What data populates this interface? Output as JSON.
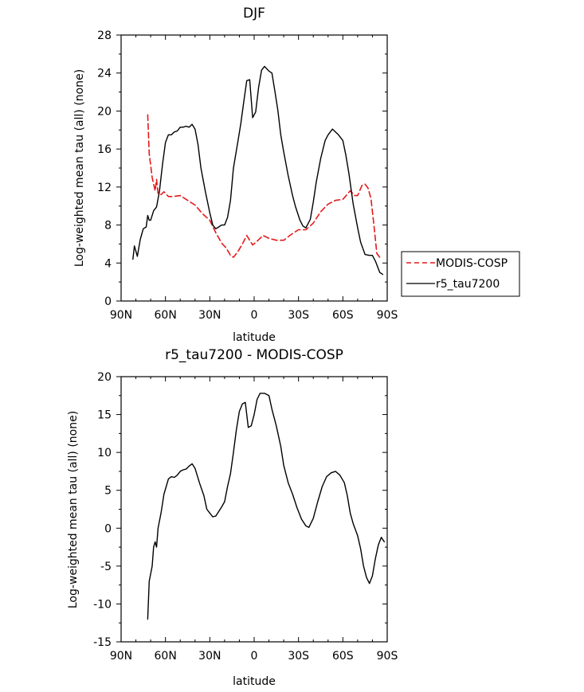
{
  "chart_data": [
    {
      "type": "line",
      "title": "DJF",
      "xlabel": "latitude",
      "ylabel": "Log-weighted mean tau (all) (none)",
      "xlim": [
        -90,
        90
      ],
      "ylim": [
        0,
        28
      ],
      "x_ticks": [
        {
          "value": -90,
          "label": "90N"
        },
        {
          "value": -60,
          "label": "60N"
        },
        {
          "value": -30,
          "label": "30N"
        },
        {
          "value": 0,
          "label": "0"
        },
        {
          "value": 30,
          "label": "30S"
        },
        {
          "value": 60,
          "label": "60S"
        },
        {
          "value": 90,
          "label": "90S"
        }
      ],
      "y_ticks": [
        0,
        4,
        8,
        12,
        16,
        20,
        24,
        28
      ],
      "legend_position": "right",
      "series": [
        {
          "name": "MODIS-COSP",
          "color": "#e41a1c",
          "style": "dashed",
          "points": [
            [
              -72,
              19.6
            ],
            [
              -71,
              15.5
            ],
            [
              -69,
              13
            ],
            [
              -67,
              11.6
            ],
            [
              -66,
              12.8
            ],
            [
              -65,
              11.3
            ],
            [
              -63,
              11.2
            ],
            [
              -61,
              11.5
            ],
            [
              -58,
              11
            ],
            [
              -55,
              11
            ],
            [
              -50,
              11.1
            ],
            [
              -45,
              10.6
            ],
            [
              -40,
              10.1
            ],
            [
              -35,
              9.2
            ],
            [
              -30,
              8.5
            ],
            [
              -26,
              7.2
            ],
            [
              -22,
              6.1
            ],
            [
              -19,
              5.6
            ],
            [
              -16,
              4.8
            ],
            [
              -14,
              4.6
            ],
            [
              -11,
              5.2
            ],
            [
              -8,
              6
            ],
            [
              -5,
              6.9
            ],
            [
              -3,
              6.4
            ],
            [
              -1,
              5.9
            ],
            [
              2,
              6.3
            ],
            [
              6,
              6.9
            ],
            [
              10,
              6.6
            ],
            [
              15,
              6.4
            ],
            [
              20,
              6.4
            ],
            [
              25,
              7
            ],
            [
              30,
              7.5
            ],
            [
              35,
              7.5
            ],
            [
              40,
              8.2
            ],
            [
              45,
              9.4
            ],
            [
              50,
              10.2
            ],
            [
              55,
              10.6
            ],
            [
              60,
              10.7
            ],
            [
              65,
              11.6
            ],
            [
              68,
              11.1
            ],
            [
              70,
              11.1
            ],
            [
              73,
              12.2
            ],
            [
              75,
              12.3
            ],
            [
              77,
              11.9
            ],
            [
              79,
              10.8
            ],
            [
              81,
              8
            ],
            [
              83,
              5
            ],
            [
              85,
              4.6
            ]
          ]
        },
        {
          "name": "r5_tau7200",
          "color": "#000000",
          "style": "solid",
          "points": [
            [
              -82,
              4.4
            ],
            [
              -81,
              5.8
            ],
            [
              -79,
              4.7
            ],
            [
              -77,
              6.5
            ],
            [
              -75,
              7.6
            ],
            [
              -73,
              7.8
            ],
            [
              -72,
              9
            ],
            [
              -71,
              8.5
            ],
            [
              -70,
              8.5
            ],
            [
              -68,
              9.5
            ],
            [
              -66,
              9.9
            ],
            [
              -64,
              11.6
            ],
            [
              -62,
              14.4
            ],
            [
              -60,
              16.7
            ],
            [
              -58,
              17.5
            ],
            [
              -56,
              17.5
            ],
            [
              -54,
              17.8
            ],
            [
              -52,
              17.9
            ],
            [
              -50,
              18.3
            ],
            [
              -48,
              18.3
            ],
            [
              -46,
              18.4
            ],
            [
              -44,
              18.3
            ],
            [
              -42,
              18.6
            ],
            [
              -40,
              18.1
            ],
            [
              -38,
              16.5
            ],
            [
              -36,
              14
            ],
            [
              -33,
              11.5
            ],
            [
              -30,
              9.3
            ],
            [
              -28,
              8
            ],
            [
              -26,
              7.6
            ],
            [
              -24,
              7.8
            ],
            [
              -22,
              8
            ],
            [
              -20,
              8
            ],
            [
              -18,
              8.8
            ],
            [
              -16,
              10.6
            ],
            [
              -14,
              14
            ],
            [
              -11,
              16.8
            ],
            [
              -9,
              18.7
            ],
            [
              -7,
              21
            ],
            [
              -5,
              23.2
            ],
            [
              -3,
              23.3
            ],
            [
              -1,
              19.3
            ],
            [
              1,
              19.9
            ],
            [
              3,
              22.5
            ],
            [
              5,
              24.3
            ],
            [
              7,
              24.7
            ],
            [
              10,
              24.2
            ],
            [
              12,
              24
            ],
            [
              14,
              22.1
            ],
            [
              16,
              20.1
            ],
            [
              18,
              17.5
            ],
            [
              20,
              15.7
            ],
            [
              23,
              13.2
            ],
            [
              26,
              11.1
            ],
            [
              28,
              9.9
            ],
            [
              31,
              8.5
            ],
            [
              33,
              7.9
            ],
            [
              35,
              7.7
            ],
            [
              38,
              8.6
            ],
            [
              40,
              10.4
            ],
            [
              42,
              12.5
            ],
            [
              45,
              15
            ],
            [
              48,
              16.9
            ],
            [
              50,
              17.5
            ],
            [
              53,
              18.1
            ],
            [
              55,
              17.8
            ],
            [
              57,
              17.5
            ],
            [
              60,
              16.9
            ],
            [
              62,
              15.4
            ],
            [
              64,
              13.5
            ],
            [
              67,
              10.2
            ],
            [
              70,
              7.7
            ],
            [
              72,
              6.2
            ],
            [
              75,
              4.9
            ],
            [
              78,
              4.8
            ],
            [
              80,
              4.8
            ],
            [
              82,
              4.2
            ],
            [
              85,
              3
            ],
            [
              87,
              2.8
            ]
          ]
        }
      ]
    },
    {
      "type": "line",
      "title": "r5_tau7200 - MODIS-COSP",
      "xlabel": "latitude",
      "ylabel": "Log-weighted mean tau (all) (none)",
      "xlim": [
        -90,
        90
      ],
      "ylim": [
        -15,
        20
      ],
      "x_ticks": [
        {
          "value": -90,
          "label": "90N"
        },
        {
          "value": -60,
          "label": "60N"
        },
        {
          "value": -30,
          "label": "30N"
        },
        {
          "value": 0,
          "label": "0"
        },
        {
          "value": 30,
          "label": "30S"
        },
        {
          "value": 60,
          "label": "60S"
        },
        {
          "value": 90,
          "label": "90S"
        }
      ],
      "y_ticks": [
        -15,
        -10,
        -5,
        0,
        5,
        10,
        15,
        20
      ],
      "series": [
        {
          "color": "#000000",
          "style": "solid",
          "points": [
            [
              -72,
              -12
            ],
            [
              -71,
              -7
            ],
            [
              -69,
              -5
            ],
            [
              -68,
              -2.5
            ],
            [
              -67,
              -1.8
            ],
            [
              -66,
              -2.5
            ],
            [
              -65,
              0
            ],
            [
              -63,
              2
            ],
            [
              -61,
              4.5
            ],
            [
              -58,
              6.5
            ],
            [
              -56,
              6.8
            ],
            [
              -54,
              6.7
            ],
            [
              -52,
              7
            ],
            [
              -50,
              7.5
            ],
            [
              -48,
              7.7
            ],
            [
              -46,
              7.8
            ],
            [
              -44,
              8.2
            ],
            [
              -42,
              8.5
            ],
            [
              -40,
              7.9
            ],
            [
              -37,
              6
            ],
            [
              -34,
              4.3
            ],
            [
              -32,
              2.5
            ],
            [
              -30,
              2
            ],
            [
              -28,
              1.5
            ],
            [
              -26,
              1.6
            ],
            [
              -24,
              2.2
            ],
            [
              -22,
              2.8
            ],
            [
              -20,
              3.5
            ],
            [
              -18,
              5.5
            ],
            [
              -16,
              7.2
            ],
            [
              -14,
              10
            ],
            [
              -12,
              13
            ],
            [
              -10,
              15.4
            ],
            [
              -8,
              16.4
            ],
            [
              -6,
              16.6
            ],
            [
              -4,
              13.3
            ],
            [
              -2,
              13.5
            ],
            [
              0,
              15
            ],
            [
              2,
              17
            ],
            [
              4,
              17.8
            ],
            [
              7,
              17.8
            ],
            [
              10,
              17.5
            ],
            [
              12,
              15.7
            ],
            [
              15,
              13.5
            ],
            [
              18,
              10.8
            ],
            [
              20,
              8.3
            ],
            [
              23,
              6
            ],
            [
              26,
              4.5
            ],
            [
              29,
              2.7
            ],
            [
              32,
              1.2
            ],
            [
              35,
              0.3
            ],
            [
              37,
              0.1
            ],
            [
              40,
              1.3
            ],
            [
              43,
              3.5
            ],
            [
              46,
              5.5
            ],
            [
              49,
              6.8
            ],
            [
              52,
              7.3
            ],
            [
              55,
              7.5
            ],
            [
              58,
              7
            ],
            [
              61,
              6
            ],
            [
              63,
              4.3
            ],
            [
              65,
              2
            ],
            [
              67,
              0.6
            ],
            [
              70,
              -1
            ],
            [
              72,
              -2.7
            ],
            [
              74,
              -5
            ],
            [
              76,
              -6.5
            ],
            [
              78,
              -7.3
            ],
            [
              80,
              -6.3
            ],
            [
              82,
              -4
            ],
            [
              84,
              -2.2
            ],
            [
              86,
              -1.2
            ],
            [
              88,
              -1.8
            ]
          ]
        }
      ]
    }
  ]
}
